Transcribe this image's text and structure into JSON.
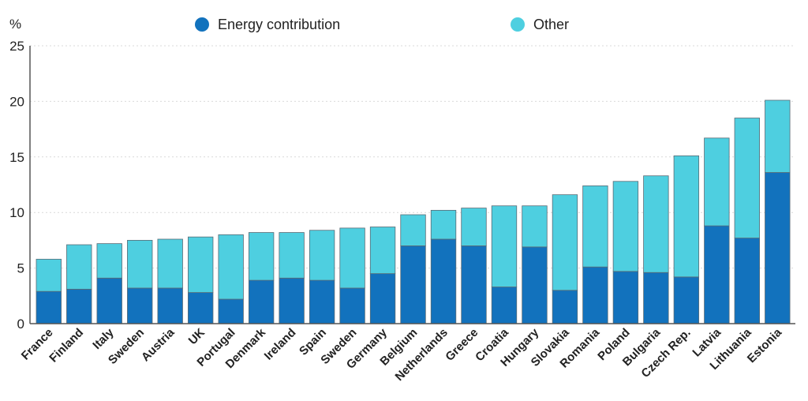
{
  "chart_data": {
    "type": "bar",
    "stacked": true,
    "ylabel": "%",
    "ylim": [
      0,
      25
    ],
    "yticks": [
      0,
      5,
      10,
      15,
      20,
      25
    ],
    "grid": true,
    "legend_position": "top-center",
    "categories": [
      "France",
      "Finland",
      "Italy",
      "Sweden",
      "Austria",
      "UK",
      "Portugal",
      "Denmark",
      "Ireland",
      "Spain",
      "Sweden",
      "Germany",
      "Belgium",
      "Netherlands",
      "Greece",
      "Croatia",
      "Hungary",
      "Slovakia",
      "Romania",
      "Poland",
      "Bulgaria",
      "Czech Rep.",
      "Latvia",
      "Lithuania",
      "Estonia"
    ],
    "series": [
      {
        "name": "Energy contribution",
        "color": "#1272bd",
        "values": [
          2.9,
          3.1,
          4.1,
          3.2,
          3.2,
          2.8,
          2.2,
          3.9,
          4.1,
          3.9,
          3.2,
          4.5,
          7.0,
          7.6,
          7.0,
          3.3,
          6.9,
          3.0,
          5.1,
          4.7,
          4.6,
          4.2,
          8.8,
          7.7,
          13.6
        ]
      },
      {
        "name": "Other",
        "color": "#4ecfe0",
        "values": [
          2.9,
          4.0,
          3.1,
          4.3,
          4.4,
          5.0,
          5.8,
          4.3,
          4.1,
          4.5,
          5.4,
          4.2,
          2.8,
          2.6,
          3.4,
          7.3,
          3.7,
          8.6,
          7.3,
          8.1,
          8.7,
          10.9,
          7.9,
          10.8,
          6.5
        ]
      }
    ]
  }
}
